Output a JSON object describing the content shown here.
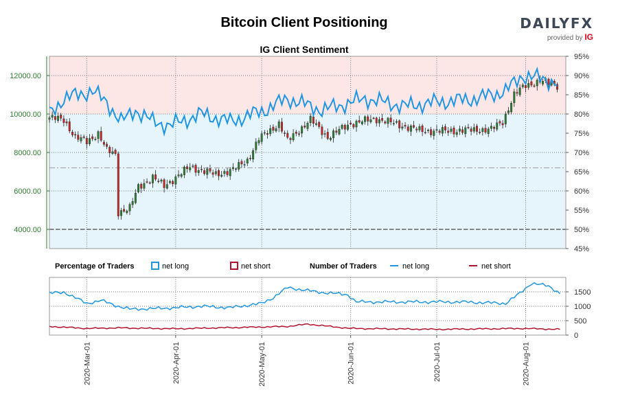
{
  "header": {
    "title": "Bitcoin Client Positioning",
    "subtitle": "IG Client Sentiment",
    "brand_main": "DAILY",
    "brand_fx": "FX",
    "brand_provided": "provided by",
    "brand_ig": "IG"
  },
  "legend": {
    "pct_title": "Percentage of Traders",
    "pct_long": "net long",
    "pct_short": "net short",
    "num_title": "Number of Traders",
    "num_long": "net long",
    "num_short": "net short"
  },
  "colors": {
    "long": "#1e96e3",
    "short": "#b3112b",
    "up_candle": "#2e7d32",
    "down_candle": "#c62828",
    "bg_long": "#e6f4fc",
    "bg_short": "#fde6e6",
    "axis_green": "#2e7d32"
  },
  "chart_data": [
    {
      "type": "candlestick",
      "title": "Bitcoin Client Positioning",
      "subtitle": "IG Client Sentiment",
      "x_range": [
        "2020-02-17",
        "2020-08-15"
      ],
      "x_ticks": [
        "2020-Mar-01",
        "2020-Apr-01",
        "2020-May-01",
        "2020-Jun-01",
        "2020-Jul-01",
        "2020-Aug-01"
      ],
      "y_left": {
        "range": [
          3000,
          13000
        ],
        "ticks": [
          "4000.00",
          "6000.00",
          "8000.00",
          "10000.00",
          "12000.00"
        ]
      },
      "y_right": {
        "range": [
          45,
          95
        ],
        "ticks": [
          "45%",
          "50%",
          "55%",
          "60%",
          "65%",
          "70%",
          "75%",
          "80%",
          "85%",
          "90%",
          "95%"
        ],
        "ref_lines": [
          50,
          66
        ]
      },
      "price_keypoints": [
        {
          "date": "2020-02-17",
          "value": 9800
        },
        {
          "date": "2020-02-22",
          "value": 9700
        },
        {
          "date": "2020-02-26",
          "value": 8800
        },
        {
          "date": "2020-03-01",
          "value": 8550
        },
        {
          "date": "2020-03-05",
          "value": 9000
        },
        {
          "date": "2020-03-08",
          "value": 8100
        },
        {
          "date": "2020-03-11",
          "value": 7900
        },
        {
          "date": "2020-03-12",
          "value": 4900
        },
        {
          "date": "2020-03-16",
          "value": 5100
        },
        {
          "date": "2020-03-19",
          "value": 6200
        },
        {
          "date": "2020-03-24",
          "value": 6700
        },
        {
          "date": "2020-03-28",
          "value": 6250
        },
        {
          "date": "2020-04-06",
          "value": 7250
        },
        {
          "date": "2020-04-15",
          "value": 6850
        },
        {
          "date": "2020-04-21",
          "value": 7100
        },
        {
          "date": "2020-04-26",
          "value": 7600
        },
        {
          "date": "2020-04-30",
          "value": 8700
        },
        {
          "date": "2020-05-07",
          "value": 9500
        },
        {
          "date": "2020-05-10",
          "value": 8600
        },
        {
          "date": "2020-05-18",
          "value": 9700
        },
        {
          "date": "2020-05-24",
          "value": 8800
        },
        {
          "date": "2020-06-01",
          "value": 9500
        },
        {
          "date": "2020-06-10",
          "value": 9750
        },
        {
          "date": "2020-06-25",
          "value": 9150
        },
        {
          "date": "2020-07-01",
          "value": 9100
        },
        {
          "date": "2020-07-20",
          "value": 9200
        },
        {
          "date": "2020-07-24",
          "value": 9600
        },
        {
          "date": "2020-07-28",
          "value": 11000
        },
        {
          "date": "2020-08-01",
          "value": 11500
        },
        {
          "date": "2020-08-06",
          "value": 11700
        },
        {
          "date": "2020-08-12",
          "value": 11500
        }
      ],
      "net_long_pct_keypoints": [
        {
          "date": "2020-02-17",
          "value": 80
        },
        {
          "date": "2020-02-22",
          "value": 84
        },
        {
          "date": "2020-03-03",
          "value": 86
        },
        {
          "date": "2020-03-08",
          "value": 83
        },
        {
          "date": "2020-03-13",
          "value": 78
        },
        {
          "date": "2020-03-18",
          "value": 81
        },
        {
          "date": "2020-03-24",
          "value": 78
        },
        {
          "date": "2020-03-30",
          "value": 77
        },
        {
          "date": "2020-04-10",
          "value": 80
        },
        {
          "date": "2020-04-20",
          "value": 78
        },
        {
          "date": "2020-05-02",
          "value": 81
        },
        {
          "date": "2020-05-10",
          "value": 84
        },
        {
          "date": "2020-05-22",
          "value": 81
        },
        {
          "date": "2020-06-06",
          "value": 84
        },
        {
          "date": "2020-06-20",
          "value": 82
        },
        {
          "date": "2020-06-30",
          "value": 83
        },
        {
          "date": "2020-07-15",
          "value": 84
        },
        {
          "date": "2020-07-25",
          "value": 86
        },
        {
          "date": "2020-07-31",
          "value": 90
        },
        {
          "date": "2020-08-08",
          "value": 89
        },
        {
          "date": "2020-08-12",
          "value": 88
        }
      ],
      "series": [
        {
          "name": "net long"
        },
        {
          "name": "net short"
        }
      ]
    },
    {
      "type": "line",
      "title": "Number of Traders",
      "x_range": [
        "2020-02-17",
        "2020-08-15"
      ],
      "y_range": [
        0,
        2000
      ],
      "y_ticks": [
        "0",
        "500",
        "1000",
        "1500"
      ],
      "series": [
        {
          "name": "net long",
          "keypoints": [
            {
              "date": "2020-02-17",
              "value": 1450
            },
            {
              "date": "2020-02-22",
              "value": 1490
            },
            {
              "date": "2020-03-01",
              "value": 1100
            },
            {
              "date": "2020-03-06",
              "value": 1200
            },
            {
              "date": "2020-03-12",
              "value": 1000
            },
            {
              "date": "2020-03-16",
              "value": 900
            },
            {
              "date": "2020-03-25",
              "value": 920
            },
            {
              "date": "2020-04-01",
              "value": 950
            },
            {
              "date": "2020-04-10",
              "value": 1000
            },
            {
              "date": "2020-04-20",
              "value": 950
            },
            {
              "date": "2020-05-01",
              "value": 1100
            },
            {
              "date": "2020-05-05",
              "value": 1300
            },
            {
              "date": "2020-05-10",
              "value": 1650
            },
            {
              "date": "2020-05-20",
              "value": 1500
            },
            {
              "date": "2020-05-31",
              "value": 1400
            },
            {
              "date": "2020-06-03",
              "value": 1150
            },
            {
              "date": "2020-06-20",
              "value": 1150
            },
            {
              "date": "2020-07-10",
              "value": 1150
            },
            {
              "date": "2020-07-25",
              "value": 1100
            },
            {
              "date": "2020-07-30",
              "value": 1450
            },
            {
              "date": "2020-08-03",
              "value": 1800
            },
            {
              "date": "2020-08-09",
              "value": 1700
            },
            {
              "date": "2020-08-13",
              "value": 1450
            }
          ]
        },
        {
          "name": "net short",
          "keypoints": [
            {
              "date": "2020-02-17",
              "value": 300
            },
            {
              "date": "2020-03-01",
              "value": 230
            },
            {
              "date": "2020-03-12",
              "value": 250
            },
            {
              "date": "2020-04-01",
              "value": 220
            },
            {
              "date": "2020-05-10",
              "value": 300
            },
            {
              "date": "2020-05-17",
              "value": 380
            },
            {
              "date": "2020-06-01",
              "value": 230
            },
            {
              "date": "2020-07-01",
              "value": 200
            },
            {
              "date": "2020-07-31",
              "value": 230
            },
            {
              "date": "2020-08-13",
              "value": 200
            }
          ]
        }
      ]
    }
  ]
}
